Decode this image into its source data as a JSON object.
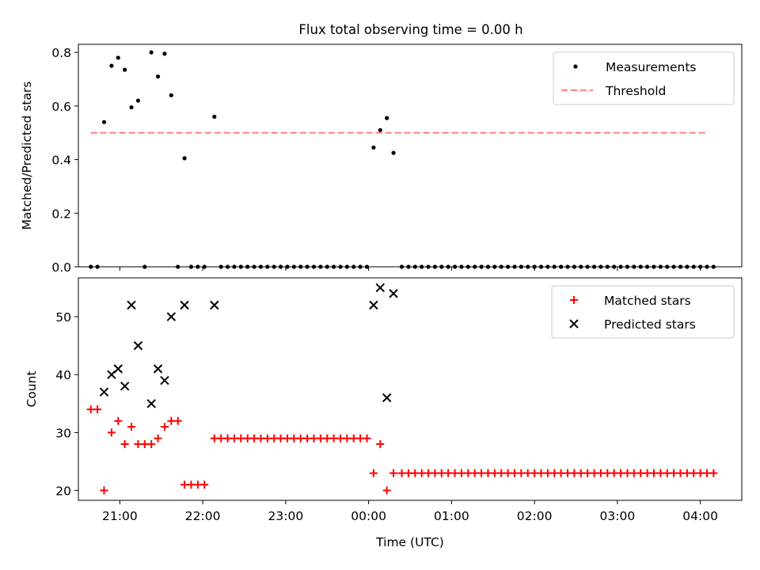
{
  "chart_data": [
    {
      "type": "scatter",
      "title": "Flux total observing time = 0.00 h",
      "xlabel": "",
      "ylabel": "Matched/Predicted stars",
      "xlim": [
        -3.5,
        4.5
      ],
      "ylim": [
        0,
        0.83
      ],
      "yticks": [
        0.0,
        0.2,
        0.4,
        0.6,
        0.8
      ],
      "ytick_labels": [
        "0.0",
        "0.2",
        "0.4",
        "0.6",
        "0.8"
      ],
      "xticks": [
        -3,
        -2,
        -1,
        0,
        1,
        2,
        3,
        4
      ],
      "legend_position": "top-right",
      "series": [
        {
          "name": "Measurements",
          "style": "dot",
          "color": "#000000",
          "points": [
            [
              -3.35,
              0
            ],
            [
              -3.27,
              0
            ],
            [
              -3.19,
              0.54
            ],
            [
              -3.1,
              0.75
            ],
            [
              -3.02,
              0.78
            ],
            [
              -2.94,
              0.735
            ],
            [
              -2.86,
              0.595
            ],
            [
              -2.78,
              0.62
            ],
            [
              -2.7,
              0
            ],
            [
              -2.62,
              0.8
            ],
            [
              -2.54,
              0.71
            ],
            [
              -2.46,
              0.795
            ],
            [
              -2.38,
              0.64
            ],
            [
              -2.3,
              0
            ],
            [
              -2.22,
              0.405
            ],
            [
              -2.14,
              0
            ],
            [
              -2.06,
              0
            ],
            [
              -1.98,
              0
            ],
            [
              -1.86,
              0.56
            ],
            [
              -1.78,
              0
            ],
            [
              -1.7,
              0
            ],
            [
              -1.62,
              0
            ],
            [
              -1.54,
              0
            ],
            [
              -1.46,
              0
            ],
            [
              -1.38,
              0
            ],
            [
              -1.3,
              0
            ],
            [
              -1.22,
              0
            ],
            [
              -1.14,
              0
            ],
            [
              -1.06,
              0
            ],
            [
              -0.98,
              0
            ],
            [
              -0.9,
              0
            ],
            [
              -0.82,
              0
            ],
            [
              -0.74,
              0
            ],
            [
              -0.66,
              0
            ],
            [
              -0.58,
              0
            ],
            [
              -0.5,
              0
            ],
            [
              -0.42,
              0
            ],
            [
              -0.34,
              0
            ],
            [
              -0.26,
              0
            ],
            [
              -0.18,
              0
            ],
            [
              -0.1,
              0
            ],
            [
              -0.02,
              0
            ],
            [
              0.06,
              0.445
            ],
            [
              0.14,
              0.51
            ],
            [
              0.22,
              0.555
            ],
            [
              0.3,
              0.425
            ],
            [
              0.4,
              0
            ],
            [
              0.48,
              0
            ],
            [
              0.56,
              0
            ],
            [
              0.64,
              0
            ],
            [
              0.72,
              0
            ],
            [
              0.8,
              0
            ],
            [
              0.88,
              0
            ],
            [
              0.96,
              0
            ],
            [
              1.04,
              0
            ],
            [
              1.12,
              0
            ],
            [
              1.2,
              0
            ],
            [
              1.28,
              0
            ],
            [
              1.36,
              0
            ],
            [
              1.44,
              0
            ],
            [
              1.52,
              0
            ],
            [
              1.6,
              0
            ],
            [
              1.68,
              0
            ],
            [
              1.76,
              0
            ],
            [
              1.84,
              0
            ],
            [
              1.92,
              0
            ],
            [
              2.0,
              0
            ],
            [
              2.08,
              0
            ],
            [
              2.16,
              0
            ],
            [
              2.24,
              0
            ],
            [
              2.32,
              0
            ],
            [
              2.4,
              0
            ],
            [
              2.48,
              0
            ],
            [
              2.56,
              0
            ],
            [
              2.64,
              0
            ],
            [
              2.72,
              0
            ],
            [
              2.8,
              0
            ],
            [
              2.88,
              0
            ],
            [
              2.96,
              0
            ],
            [
              3.04,
              0
            ],
            [
              3.12,
              0
            ],
            [
              3.2,
              0
            ],
            [
              3.28,
              0
            ],
            [
              3.36,
              0
            ],
            [
              3.44,
              0
            ],
            [
              3.52,
              0
            ],
            [
              3.6,
              0
            ],
            [
              3.68,
              0
            ],
            [
              3.76,
              0
            ],
            [
              3.84,
              0
            ],
            [
              3.92,
              0
            ],
            [
              4.0,
              0
            ],
            [
              4.08,
              0
            ],
            [
              4.16,
              0
            ]
          ]
        },
        {
          "name": "Threshold",
          "style": "dashed-line",
          "color": "#ff7f7f",
          "points": [
            [
              -3.35,
              0.5
            ],
            [
              4.1,
              0.5
            ]
          ]
        }
      ]
    },
    {
      "type": "scatter",
      "title": "",
      "xlabel": "Time (UTC)",
      "ylabel": "Count",
      "xlim": [
        -3.5,
        4.5
      ],
      "ylim": [
        18.3,
        56.7
      ],
      "yticks": [
        20,
        30,
        40,
        50
      ],
      "ytick_labels": [
        "20",
        "30",
        "40",
        "50"
      ],
      "xticks": [
        -3,
        -2,
        -1,
        0,
        1,
        2,
        3,
        4
      ],
      "xtick_labels": [
        "21:00",
        "22:00",
        "23:00",
        "00:00",
        "01:00",
        "02:00",
        "03:00",
        "04:00"
      ],
      "legend_position": "top-right",
      "series": [
        {
          "name": "Matched stars",
          "style": "plus",
          "color": "#ff0000",
          "points": [
            [
              -3.35,
              34
            ],
            [
              -3.27,
              34
            ],
            [
              -3.19,
              20
            ],
            [
              -3.1,
              30
            ],
            [
              -3.02,
              32
            ],
            [
              -2.94,
              28
            ],
            [
              -2.86,
              31
            ],
            [
              -2.78,
              28
            ],
            [
              -2.7,
              28
            ],
            [
              -2.62,
              28
            ],
            [
              -2.54,
              29
            ],
            [
              -2.46,
              31
            ],
            [
              -2.38,
              32
            ],
            [
              -2.3,
              32
            ],
            [
              -2.22,
              21
            ],
            [
              -2.14,
              21
            ],
            [
              -2.06,
              21
            ],
            [
              -1.98,
              21
            ],
            [
              -1.86,
              29
            ],
            [
              -1.78,
              29
            ],
            [
              -1.7,
              29
            ],
            [
              -1.62,
              29
            ],
            [
              -1.54,
              29
            ],
            [
              -1.46,
              29
            ],
            [
              -1.38,
              29
            ],
            [
              -1.3,
              29
            ],
            [
              -1.22,
              29
            ],
            [
              -1.14,
              29
            ],
            [
              -1.06,
              29
            ],
            [
              -0.98,
              29
            ],
            [
              -0.9,
              29
            ],
            [
              -0.82,
              29
            ],
            [
              -0.74,
              29
            ],
            [
              -0.66,
              29
            ],
            [
              -0.58,
              29
            ],
            [
              -0.5,
              29
            ],
            [
              -0.42,
              29
            ],
            [
              -0.34,
              29
            ],
            [
              -0.26,
              29
            ],
            [
              -0.18,
              29
            ],
            [
              -0.1,
              29
            ],
            [
              -0.02,
              29
            ],
            [
              0.06,
              23
            ],
            [
              0.14,
              28
            ],
            [
              0.22,
              20
            ],
            [
              0.3,
              23
            ],
            [
              0.4,
              23
            ],
            [
              0.48,
              23
            ],
            [
              0.56,
              23
            ],
            [
              0.64,
              23
            ],
            [
              0.72,
              23
            ],
            [
              0.8,
              23
            ],
            [
              0.88,
              23
            ],
            [
              0.96,
              23
            ],
            [
              1.04,
              23
            ],
            [
              1.12,
              23
            ],
            [
              1.2,
              23
            ],
            [
              1.28,
              23
            ],
            [
              1.36,
              23
            ],
            [
              1.44,
              23
            ],
            [
              1.52,
              23
            ],
            [
              1.6,
              23
            ],
            [
              1.68,
              23
            ],
            [
              1.76,
              23
            ],
            [
              1.84,
              23
            ],
            [
              1.92,
              23
            ],
            [
              2.0,
              23
            ],
            [
              2.08,
              23
            ],
            [
              2.16,
              23
            ],
            [
              2.24,
              23
            ],
            [
              2.32,
              23
            ],
            [
              2.4,
              23
            ],
            [
              2.48,
              23
            ],
            [
              2.56,
              23
            ],
            [
              2.64,
              23
            ],
            [
              2.72,
              23
            ],
            [
              2.8,
              23
            ],
            [
              2.88,
              23
            ],
            [
              2.96,
              23
            ],
            [
              3.04,
              23
            ],
            [
              3.12,
              23
            ],
            [
              3.2,
              23
            ],
            [
              3.28,
              23
            ],
            [
              3.36,
              23
            ],
            [
              3.44,
              23
            ],
            [
              3.52,
              23
            ],
            [
              3.6,
              23
            ],
            [
              3.68,
              23
            ],
            [
              3.76,
              23
            ],
            [
              3.84,
              23
            ],
            [
              3.92,
              23
            ],
            [
              4.0,
              23
            ],
            [
              4.08,
              23
            ],
            [
              4.16,
              23
            ]
          ]
        },
        {
          "name": "Predicted stars",
          "style": "x",
          "color": "#000000",
          "points": [
            [
              -3.19,
              37
            ],
            [
              -3.1,
              40
            ],
            [
              -3.02,
              41
            ],
            [
              -2.94,
              38
            ],
            [
              -2.86,
              52
            ],
            [
              -2.78,
              45
            ],
            [
              -2.62,
              35
            ],
            [
              -2.54,
              41
            ],
            [
              -2.46,
              39
            ],
            [
              -2.38,
              50
            ],
            [
              -2.22,
              52
            ],
            [
              -1.86,
              52
            ],
            [
              0.06,
              52
            ],
            [
              0.14,
              55
            ],
            [
              0.22,
              36
            ],
            [
              0.3,
              54
            ]
          ]
        }
      ]
    }
  ]
}
